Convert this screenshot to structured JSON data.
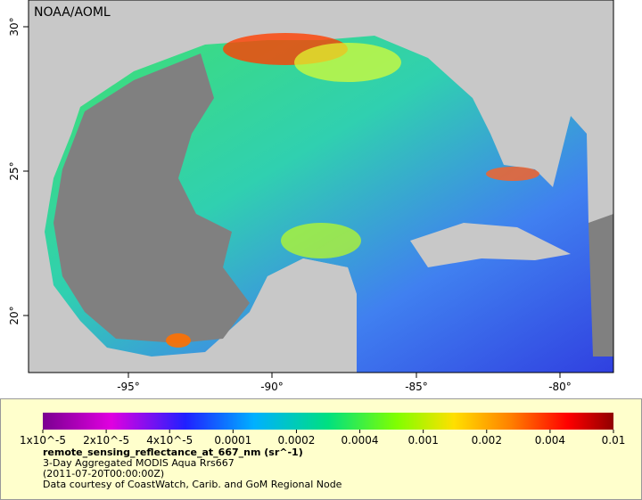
{
  "map": {
    "attribution": "NOAA/AOML",
    "lon_labels": [
      "-95°",
      "-90°",
      "-85°",
      "-80°"
    ],
    "lat_labels": [
      "30°",
      "25°",
      "20°"
    ]
  },
  "legend": {
    "colorbar_labels": [
      "1x10^-5",
      "2x10^-5",
      "4x10^-5",
      "0.0001",
      "0.0002",
      "0.0004",
      "0.001",
      "0.002",
      "0.004",
      "0.01"
    ],
    "variable": "remote_sensing_reflectance_at_667_nm (sr^-1)",
    "product": "3-Day Aggregated MODIS Aqua Rrs667",
    "date": "(2011-07-20T00:00:00Z)",
    "credit": "Data courtesy of CoastWatch, Carib. and GoM Regional Node"
  }
}
